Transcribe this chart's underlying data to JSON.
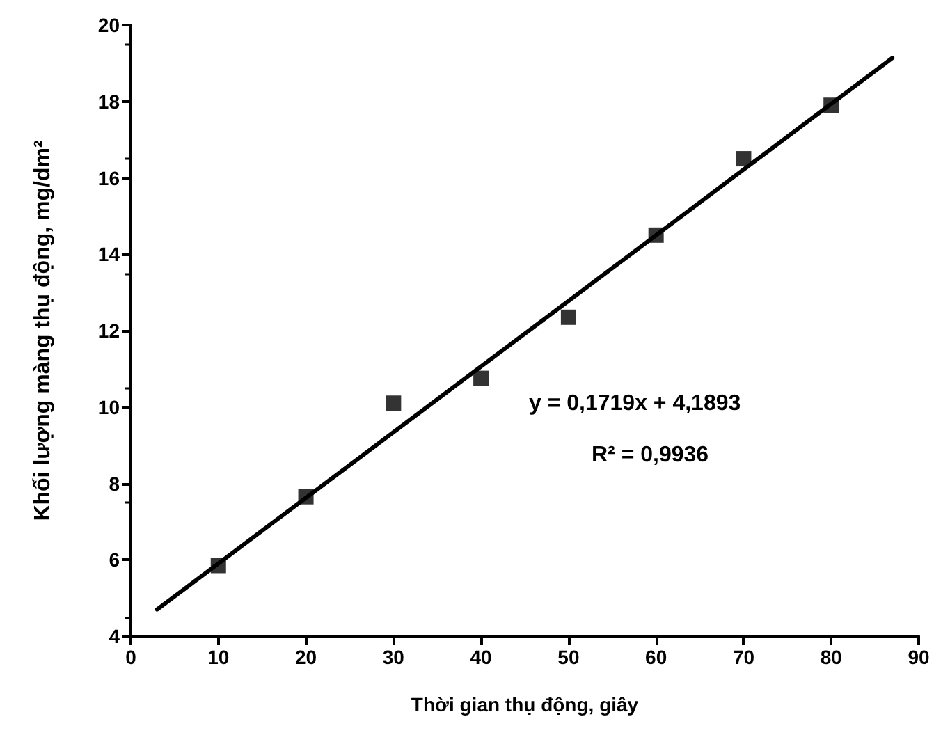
{
  "chart_data": {
    "type": "scatter",
    "xlabel": "Thời gian thụ động, giây",
    "ylabel": "Khối lượng màng thụ động, mg/dm²",
    "xlim": [
      0,
      90
    ],
    "xticks": [
      0,
      10,
      20,
      30,
      40,
      50,
      60,
      70,
      80,
      90
    ],
    "ylim": [
      4,
      20
    ],
    "yticks": [
      4,
      6,
      8,
      10,
      12,
      14,
      16,
      18,
      20
    ],
    "grid": false,
    "series": [
      {
        "marker": "square",
        "color": "#000000",
        "x": [
          10,
          20,
          30,
          40,
          50,
          60,
          70,
          80
        ],
        "values": [
          5.85,
          7.65,
          10.1,
          10.75,
          12.35,
          14.5,
          16.5,
          17.9
        ]
      },
      {
        "type": "line",
        "color": "#000000",
        "line_style": "solid",
        "x": [
          3,
          87
        ],
        "values": [
          4.7,
          19.14
        ]
      }
    ],
    "annotations": [
      "y = 0,1719x + 4,1893",
      "R² = 0,9936"
    ]
  }
}
